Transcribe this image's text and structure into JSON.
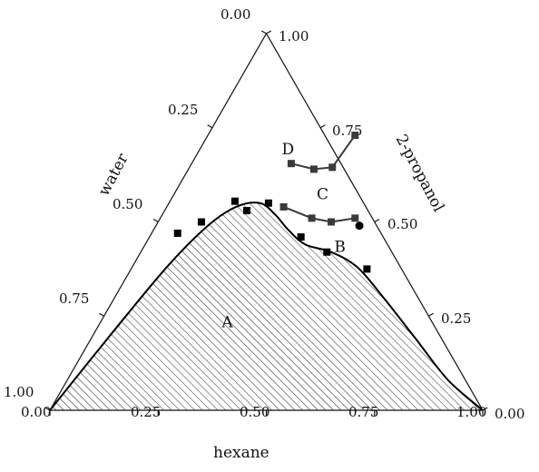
{
  "chart_data": {
    "type": "ternary-scatter-line",
    "axes": {
      "bottom": {
        "label": "hexane",
        "ticks": [
          "0.00",
          "0.25",
          "0.50",
          "0.75",
          "1.00"
        ]
      },
      "right": {
        "label": "2-propanol",
        "ticks": [
          "0.00",
          "0.25",
          "0.50",
          "0.75",
          "1.00"
        ]
      },
      "left": {
        "label": "water",
        "ticks": [
          "0.00",
          "0.25",
          "0.50",
          "0.75",
          "1.00"
        ]
      }
    },
    "regions": [
      {
        "label": "A",
        "at": {
          "hexane": 0.3,
          "propanol": 0.22
        }
      },
      {
        "label": "B",
        "at": {
          "hexane": 0.46,
          "propanol": 0.42
        }
      },
      {
        "label": "C",
        "at": {
          "hexane": 0.35,
          "propanol": 0.56
        }
      },
      {
        "label": "D",
        "at": {
          "hexane": 0.21,
          "propanol": 0.68
        }
      }
    ],
    "series": [
      {
        "marker": "square",
        "color": "#000000",
        "points": [
          {
            "hexane": 0.06,
            "propanol": 0.47
          },
          {
            "hexane": 0.1,
            "propanol": 0.5
          },
          {
            "hexane": 0.15,
            "propanol": 0.555
          },
          {
            "hexane": 0.19,
            "propanol": 0.53
          },
          {
            "hexane": 0.23,
            "propanol": 0.55
          },
          {
            "hexane": 0.35,
            "propanol": 0.46
          },
          {
            "hexane": 0.43,
            "propanol": 0.42
          },
          {
            "hexane": 0.545,
            "propanol": 0.375
          }
        ]
      },
      {
        "marker": "square",
        "color": "#3a3a3a",
        "points": [
          {
            "hexane": 0.27,
            "propanol": 0.54
          },
          {
            "hexane": 0.35,
            "propanol": 0.51
          },
          {
            "hexane": 0.4,
            "propanol": 0.5
          },
          {
            "hexane": 0.45,
            "propanol": 0.51
          }
        ]
      },
      {
        "marker": "square",
        "color": "#3a3a3a",
        "points": [
          {
            "hexane": 0.23,
            "propanol": 0.655
          },
          {
            "hexane": 0.29,
            "propanol": 0.64
          },
          {
            "hexane": 0.33,
            "propanol": 0.645
          },
          {
            "hexane": 0.34,
            "propanol": 0.73
          }
        ]
      },
      {
        "marker": "circle",
        "color": "#000000",
        "points": [
          {
            "hexane": 0.47,
            "propanol": 0.49
          }
        ]
      }
    ],
    "binodal_curve": [
      {
        "hexane": 0.0,
        "propanol": 0.0
      },
      {
        "hexane": 0.04,
        "propanol": 0.2
      },
      {
        "hexane": 0.08,
        "propanol": 0.38
      },
      {
        "hexane": 0.12,
        "propanol": 0.49
      },
      {
        "hexane": 0.16,
        "propanol": 0.54
      },
      {
        "hexane": 0.21,
        "propanol": 0.55
      },
      {
        "hexane": 0.26,
        "propanol": 0.52
      },
      {
        "hexane": 0.31,
        "propanol": 0.48
      },
      {
        "hexane": 0.37,
        "propanol": 0.44
      },
      {
        "hexane": 0.44,
        "propanol": 0.42
      },
      {
        "hexane": 0.52,
        "propanol": 0.38
      },
      {
        "hexane": 0.62,
        "propanol": 0.3
      },
      {
        "hexane": 0.75,
        "propanol": 0.19
      },
      {
        "hexane": 0.88,
        "propanol": 0.08
      },
      {
        "hexane": 1.0,
        "propanol": 0.0
      }
    ],
    "hatched_region": "A"
  }
}
